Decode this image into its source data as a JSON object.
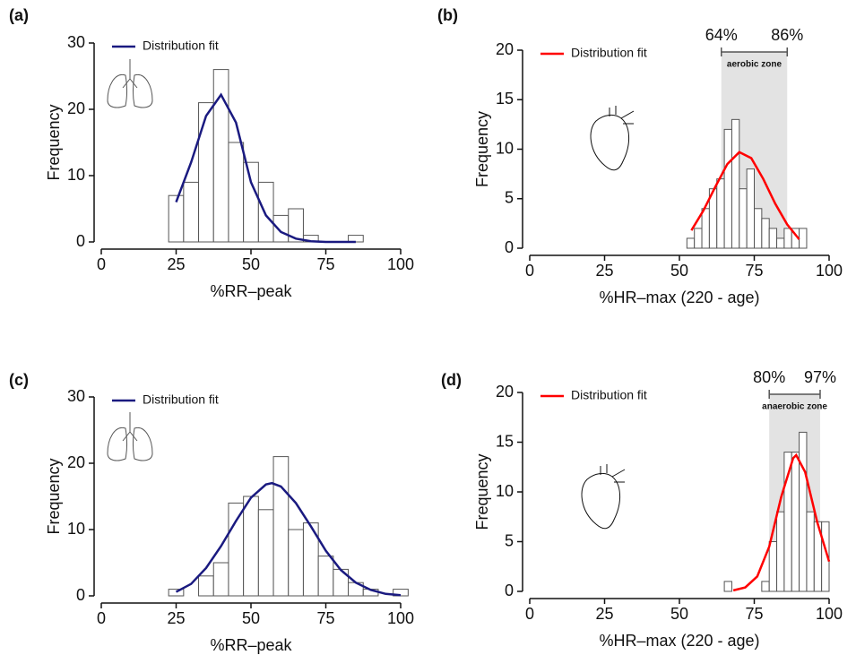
{
  "chart_data": [
    {
      "type": "histogram",
      "label": "(a)",
      "xlabel": "%RR–peak",
      "ylabel": "Frequency",
      "xlim": [
        0,
        100
      ],
      "xticks": [
        0,
        25,
        50,
        75,
        100
      ],
      "ylim": [
        0,
        30
      ],
      "yticks": [
        0,
        10,
        20,
        30
      ],
      "bins": [
        22.5,
        27.5,
        32.5,
        37.5,
        42.5,
        47.5,
        52.5,
        57.5,
        62.5,
        67.5,
        72.5,
        77.5,
        82.5,
        87.5
      ],
      "values": [
        7,
        9,
        21,
        26,
        15,
        12,
        9,
        4,
        5,
        1,
        0,
        0,
        1
      ],
      "color": "#ffffff",
      "fit": {
        "name": "Distribution fit",
        "color": "#1a1a80",
        "x": [
          25,
          30,
          35,
          40,
          45,
          50,
          55,
          60,
          65,
          70,
          75,
          80,
          85
        ],
        "values": [
          6,
          12,
          19,
          22.2,
          18,
          9,
          4,
          1.5,
          0.5,
          0.1,
          0,
          0,
          0
        ]
      }
    },
    {
      "type": "histogram",
      "label": "(b)",
      "xlabel": "%HR–max (220 - age)",
      "ylabel": "Frequency",
      "xlim": [
        0,
        100
      ],
      "xticks": [
        0,
        25,
        50,
        75,
        100
      ],
      "ylim": [
        0,
        20
      ],
      "yticks": [
        0,
        5,
        10,
        15,
        20
      ],
      "bins": [
        52.5,
        55,
        57.5,
        60,
        62.5,
        65,
        67.5,
        70,
        72.5,
        75,
        77.5,
        80,
        82.5,
        85,
        87.5,
        90,
        92.5
      ],
      "values": [
        1,
        2,
        4,
        6,
        7,
        12,
        13,
        6,
        8,
        4,
        3,
        2,
        1,
        2,
        2,
        2
      ],
      "color": "#ffffff",
      "fit": {
        "name": "Distribution fit",
        "color": "#ff0000",
        "x": [
          54,
          58,
          62,
          66,
          70,
          74,
          78,
          82,
          86,
          90
        ],
        "values": [
          1.8,
          3.8,
          6.2,
          8.5,
          9.7,
          9.1,
          7,
          4.5,
          2.4,
          0.9
        ]
      },
      "zone": {
        "values": [
          64,
          86
        ],
        "value_labels": [
          "64%",
          "86%"
        ],
        "label": "aerobic zone"
      }
    },
    {
      "type": "histogram",
      "label": "(c)",
      "xlabel": "%RR–peak",
      "ylabel": "Frequency",
      "xlim": [
        0,
        100
      ],
      "xticks": [
        0,
        25,
        50,
        75,
        100
      ],
      "ylim": [
        0,
        30
      ],
      "yticks": [
        0,
        10,
        20,
        30
      ],
      "bins": [
        22.5,
        27.5,
        32.5,
        37.5,
        42.5,
        47.5,
        52.5,
        57.5,
        62.5,
        67.5,
        72.5,
        77.5,
        82.5,
        87.5,
        92.5,
        97.5,
        102.5
      ],
      "values": [
        1,
        0,
        3,
        5,
        14,
        15,
        13,
        21,
        10,
        11,
        6,
        4,
        2,
        1,
        0,
        1
      ],
      "color": "#ffffff",
      "fit": {
        "name": "Distribution fit",
        "color": "#1a1a80",
        "x": [
          25,
          30,
          35,
          40,
          45,
          50,
          55,
          57,
          60,
          65,
          70,
          75,
          80,
          85,
          90,
          95,
          100
        ],
        "values": [
          0.6,
          1.8,
          4.2,
          7.5,
          11.3,
          14.8,
          16.8,
          17,
          16.5,
          14,
          10.5,
          6.8,
          3.9,
          2,
          0.9,
          0.3,
          0.1
        ]
      }
    },
    {
      "type": "histogram",
      "label": "(d)",
      "xlabel": "%HR–max (220 - age)",
      "ylabel": "Frequency",
      "xlim": [
        0,
        100
      ],
      "xticks": [
        0,
        25,
        50,
        75,
        100
      ],
      "ylim": [
        0,
        20
      ],
      "yticks": [
        0,
        5,
        10,
        15,
        20
      ],
      "bins": [
        65,
        67.5,
        70,
        72.5,
        75,
        77.5,
        80,
        82.5,
        85,
        87.5,
        90,
        92.5,
        95,
        97.5,
        100
      ],
      "values": [
        1,
        0,
        0,
        0,
        0,
        1,
        5,
        8,
        14,
        14,
        16,
        8,
        7,
        7
      ],
      "color": "#ffffff",
      "fit": {
        "name": "Distribution fit",
        "color": "#ff0000",
        "x": [
          68,
          72,
          76,
          80,
          84,
          88,
          89,
          92,
          96,
          100
        ],
        "values": [
          0.1,
          0.4,
          1.5,
          4.5,
          9.5,
          13.4,
          13.7,
          12,
          7,
          3
        ]
      },
      "zone": {
        "values": [
          80,
          97
        ],
        "value_labels": [
          "80%",
          "97%"
        ],
        "label": "anaerobic zone"
      }
    }
  ]
}
